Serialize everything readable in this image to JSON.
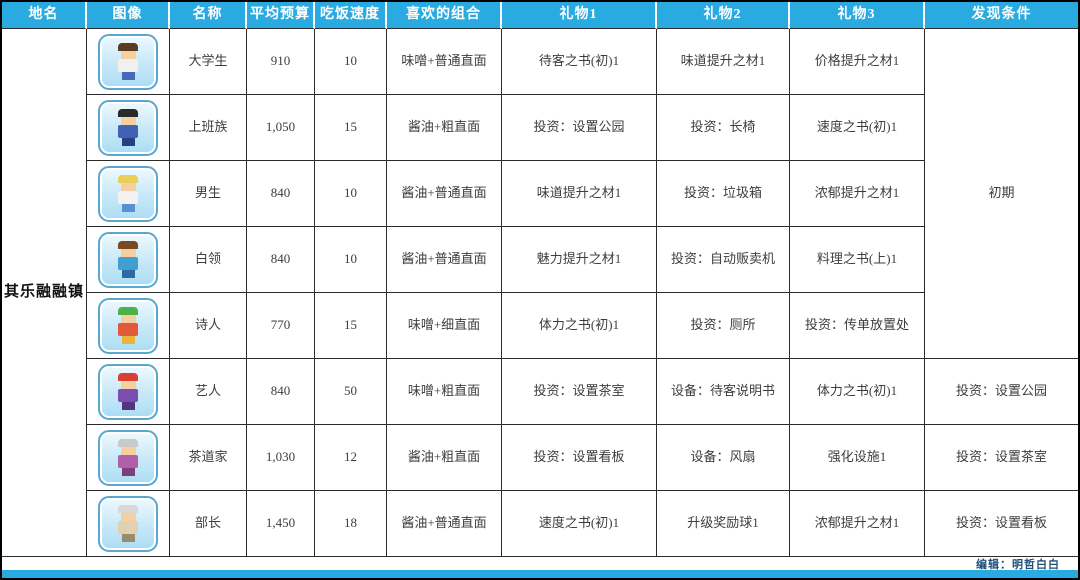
{
  "table": {
    "headers": [
      "地名",
      "图像",
      "名称",
      "平均预算",
      "吃饭速度",
      "喜欢的组合",
      "礼物1",
      "礼物2",
      "礼物3",
      "发现条件"
    ],
    "place_name": "其乐融融镇",
    "shared_condition": "初期",
    "rows": [
      {
        "name": "大学生",
        "budget": "910",
        "speed": "10",
        "combo": "味噌+普通直面",
        "gift1": "待客之书(初)1",
        "gift2": "味道提升之材1",
        "gift3": "价格提升之材1",
        "condition": "",
        "sprite": {
          "label": "college-student",
          "hair": "#5a3c20",
          "skin": "#f6cfa0",
          "top": "#f0f0ee",
          "legs": "#4668b8"
        }
      },
      {
        "name": "上班族",
        "budget": "1,050",
        "speed": "15",
        "combo": "酱油+粗直面",
        "gift1": "投资：设置公园",
        "gift2": "投资：长椅",
        "gift3": "速度之书(初)1",
        "condition": "",
        "sprite": {
          "label": "office-worker",
          "hair": "#2a2a2a",
          "skin": "#f6cfa0",
          "top": "#3f62b5",
          "legs": "#27407e"
        }
      },
      {
        "name": "男生",
        "budget": "840",
        "speed": "10",
        "combo": "酱油+普通直面",
        "gift1": "味道提升之材1",
        "gift2": "投资：垃圾箱",
        "gift3": "浓郁提升之材1",
        "condition": "",
        "sprite": {
          "label": "boy",
          "hair": "#e9cf56",
          "skin": "#f6cfa0",
          "top": "#f2f2f0",
          "legs": "#5a8fd0"
        }
      },
      {
        "name": "白领",
        "budget": "840",
        "speed": "10",
        "combo": "酱油+普通直面",
        "gift1": "魅力提升之材1",
        "gift2": "投资：自动贩卖机",
        "gift3": "料理之书(上)1",
        "condition": "",
        "sprite": {
          "label": "white-collar",
          "hair": "#7a4a22",
          "skin": "#f6cfa0",
          "top": "#3f9fd0",
          "legs": "#2a6ca0"
        }
      },
      {
        "name": "诗人",
        "budget": "770",
        "speed": "15",
        "combo": "味噌+细直面",
        "gift1": "体力之书(初)1",
        "gift2": "投资：厕所",
        "gift3": "投资：传单放置处",
        "condition": "",
        "sprite": {
          "label": "poet",
          "hair": "#4db04a",
          "skin": "#f6cfa0",
          "top": "#e05a3a",
          "legs": "#e8b43c"
        }
      },
      {
        "name": "艺人",
        "budget": "840",
        "speed": "50",
        "combo": "味噌+粗直面",
        "gift1": "投资：设置茶室",
        "gift2": "设备：待客说明书",
        "gift3": "体力之书(初)1",
        "condition": "投资：设置公园",
        "sprite": {
          "label": "entertainer",
          "hair": "#d94036",
          "skin": "#f6cfa0",
          "top": "#7a4fb0",
          "legs": "#53357e"
        }
      },
      {
        "name": "茶道家",
        "budget": "1,030",
        "speed": "12",
        "combo": "酱油+粗直面",
        "gift1": "投资：设置看板",
        "gift2": "设备：风扇",
        "gift3": "强化设施1",
        "condition": "投资：设置茶室",
        "sprite": {
          "label": "tea-master",
          "hair": "#c9c9c9",
          "skin": "#f6cfa0",
          "top": "#b060a8",
          "legs": "#7e4078"
        }
      },
      {
        "name": "部长",
        "budget": "1,450",
        "speed": "18",
        "combo": "酱油+普通直面",
        "gift1": "速度之书(初)1",
        "gift2": "升级奖励球1",
        "gift3": "浓郁提升之材1",
        "condition": "投资：设置看板",
        "sprite": {
          "label": "department-head",
          "hair": "#d8d8d8",
          "skin": "#f6cfa0",
          "top": "#ded2b2",
          "legs": "#9a8c6a"
        }
      }
    ]
  },
  "footer": {
    "editor": "编辑：明哲白白"
  },
  "colors": {
    "header_bg": "#29abe2",
    "grid_line": "#2b2b2b",
    "frame_border": "#5aa7cf",
    "footer_text": "#1f4e79"
  }
}
